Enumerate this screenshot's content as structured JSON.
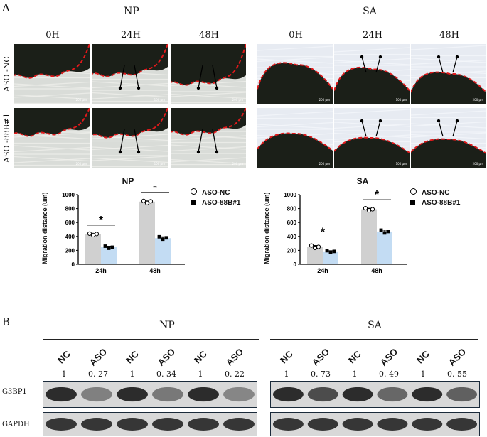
{
  "panel_a_letter": "A",
  "panel_b_letter": "B",
  "groups": {
    "np": "NP",
    "sa": "SA"
  },
  "time_headers": [
    "0H",
    "24H",
    "48H"
  ],
  "row_labels": [
    "ASO -NC",
    "ASO -88B#1"
  ],
  "scale_labels": [
    "200 μm",
    "100 μm",
    "200 μm"
  ],
  "chart_data": [
    {
      "type": "bar",
      "title": "NP",
      "ylabel": "Migration distance (um)",
      "categories": [
        "24h",
        "48h"
      ],
      "yticks": [
        "0",
        "200",
        "400",
        "600",
        "800",
        "1000"
      ],
      "ylim": [
        0,
        1000
      ],
      "series": [
        {
          "name": "ASO-NC",
          "values": [
            430,
            900
          ],
          "points": [
            [
              440,
              420,
              435
            ],
            [
              910,
              880,
              905
            ]
          ],
          "color": "#d0d0d0"
        },
        {
          "name": "ASO-88B#1",
          "values": [
            245,
            375
          ],
          "points": [
            [
              260,
              230,
              245
            ],
            [
              395,
              360,
              380
            ]
          ],
          "color": "#c3dcf3"
        }
      ],
      "significance": [
        "*",
        "*"
      ],
      "legend_position": "right"
    },
    {
      "type": "bar",
      "title": "SA",
      "ylabel": "Migration distance (um)",
      "categories": [
        "24h",
        "48h"
      ],
      "yticks": [
        "0",
        "200",
        "400",
        "600",
        "800",
        "1000"
      ],
      "ylim": [
        0,
        1000
      ],
      "series": [
        {
          "name": "ASO-NC",
          "values": [
            250,
            790
          ],
          "points": [
            [
              270,
              235,
              250
            ],
            [
              805,
              775,
              790
            ]
          ],
          "color": "#d0d0d0"
        },
        {
          "name": "ASO-88B#1",
          "values": [
            185,
            470
          ],
          "points": [
            [
              195,
              175,
              185
            ],
            [
              490,
              450,
              470
            ]
          ],
          "color": "#c3dcf3"
        }
      ],
      "significance": [
        "*",
        "*"
      ],
      "legend_position": "right"
    }
  ],
  "western": {
    "np_lanes": [
      "NC",
      "ASO",
      "NC",
      "ASO",
      "NC",
      "ASO"
    ],
    "np_ratios": [
      "1",
      "0. 27",
      "1",
      "0. 34",
      "1",
      "0. 22"
    ],
    "sa_lanes": [
      "NC",
      "ASO",
      "NC",
      "ASO",
      "NC",
      "ASO"
    ],
    "sa_ratios": [
      "1",
      "0. 73",
      "1",
      "0. 49",
      "1",
      "0. 55"
    ],
    "row_labels": [
      "G3BP1",
      "GAPDH"
    ]
  }
}
